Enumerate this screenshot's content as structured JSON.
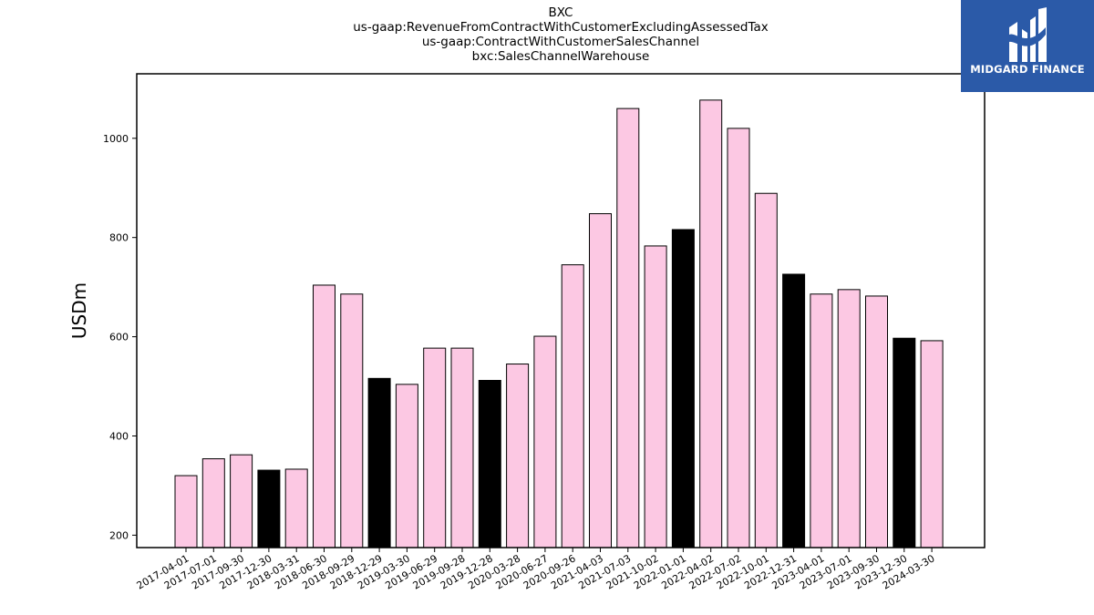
{
  "chart_data": {
    "type": "bar",
    "title_lines": [
      "BXC",
      "us-gaap:RevenueFromContractWithCustomerExcludingAssessedTax",
      "us-gaap:ContractWithCustomerSalesChannel",
      "bxc:SalesChannelWarehouse"
    ],
    "xlabel": "",
    "ylabel": "USDm",
    "ylim": [
      175,
      1130
    ],
    "yticks": [
      200,
      400,
      600,
      800,
      1000
    ],
    "grid": false,
    "legend": "none",
    "colors": {
      "default": "#fcc8e3",
      "highlight": "#000000",
      "edge": "#000000"
    },
    "categories": [
      "2017-04-01",
      "2017-07-01",
      "2017-09-30",
      "2017-12-30",
      "2018-03-31",
      "2018-06-30",
      "2018-09-29",
      "2018-12-29",
      "2019-03-30",
      "2019-06-29",
      "2019-09-28",
      "2019-12-28",
      "2020-03-28",
      "2020-06-27",
      "2020-09-26",
      "2021-04-03",
      "2021-07-03",
      "2021-10-02",
      "2022-01-01",
      "2022-04-02",
      "2022-07-02",
      "2022-10-01",
      "2022-12-31",
      "2023-04-01",
      "2023-07-01",
      "2023-09-30",
      "2023-12-30",
      "2024-03-30"
    ],
    "values": [
      320,
      354,
      362,
      331,
      333,
      704,
      686,
      516,
      504,
      577,
      577,
      512,
      545,
      601,
      745,
      848,
      1060,
      783,
      816,
      1077,
      1020,
      889,
      726,
      686,
      695,
      682,
      597,
      592
    ],
    "highlighted": [
      false,
      false,
      false,
      true,
      false,
      false,
      false,
      true,
      false,
      false,
      false,
      true,
      false,
      false,
      false,
      false,
      false,
      false,
      true,
      false,
      false,
      false,
      true,
      false,
      false,
      false,
      true,
      false
    ]
  },
  "logo": {
    "text": "MIDGARD FINANCE",
    "icon": "midgard-logo-icon"
  }
}
